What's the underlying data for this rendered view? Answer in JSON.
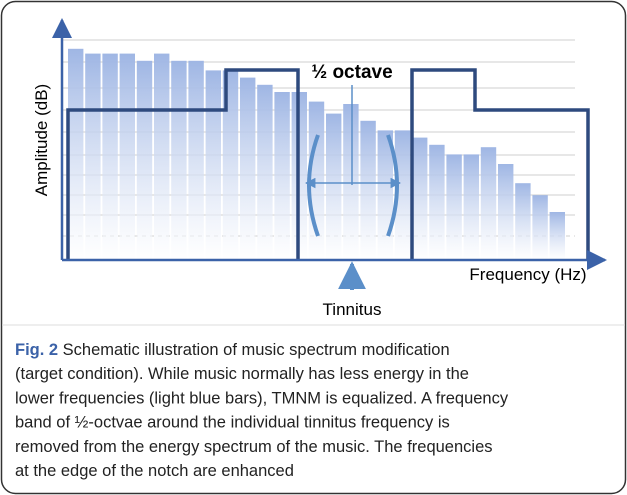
{
  "chart_data": {
    "type": "bar",
    "y_label": "Amplitude (dB)",
    "x_label": "Frequency (Hz)",
    "annotations": [
      "½ octave",
      "Tinnitus"
    ],
    "categories": [
      null,
      null,
      null,
      null,
      null,
      null,
      null,
      null,
      null,
      null,
      null,
      null,
      null,
      null,
      null,
      null,
      null,
      null,
      null,
      null,
      null,
      null,
      null,
      null,
      null,
      null,
      null,
      null,
      null
    ],
    "values": [
      88,
      86,
      86,
      86,
      83,
      86,
      83,
      83,
      79,
      79,
      76,
      73,
      70,
      70,
      66,
      61,
      65,
      58,
      54,
      54,
      51,
      48,
      44,
      44,
      47,
      40,
      32,
      27,
      20
    ],
    "color": "#9fb6e4",
    "ylim": [
      0,
      100
    ]
  },
  "caption": {
    "label": "Fig. 2",
    "lines": [
      " Schematic illustration of music spectrum modification",
      "(target condition). While music normally has less energy in the",
      "lower frequencies (light blue bars), TMNM is equalized. A frequency",
      "band of ½-octvae around the individual tinnitus frequency is",
      "removed from the energy spectrum of the music. The frequencies",
      "at the edge of the notch are enhanced"
    ]
  }
}
